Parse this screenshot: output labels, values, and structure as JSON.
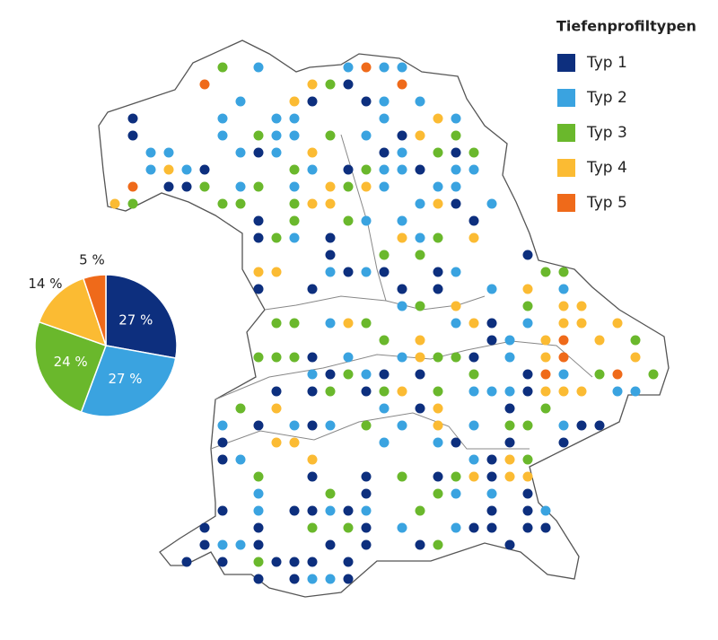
{
  "chart_data": {
    "type": "pie",
    "legend_title": "Tiefenprofiltypen",
    "categories": [
      "Typ 1",
      "Typ 2",
      "Typ 3",
      "Typ 4",
      "Typ 5"
    ],
    "colors": [
      "#0d2f7e",
      "#3aa3e0",
      "#6ab82c",
      "#fbbb33",
      "#ef6a1a"
    ],
    "values": [
      27,
      27,
      24,
      14,
      5
    ],
    "value_labels": [
      "27 %",
      "27 %",
      "24 %",
      "14 %",
      "5 %"
    ]
  }
}
